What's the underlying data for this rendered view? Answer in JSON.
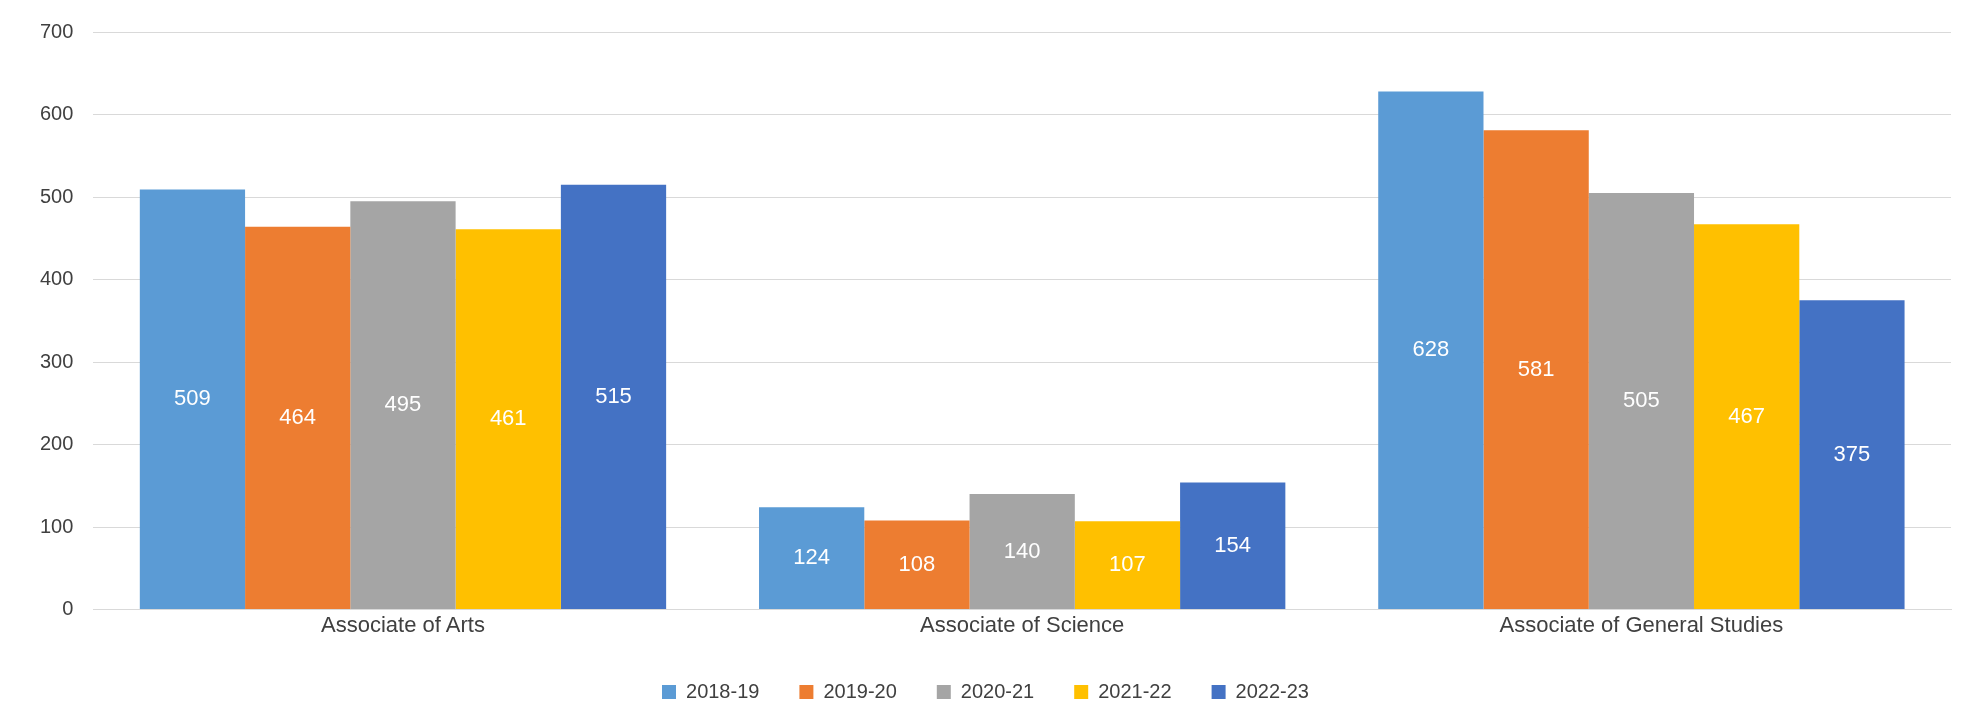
{
  "chart_data": {
    "type": "bar",
    "categories": [
      "Associate of Arts",
      "Associate of Science",
      "Associate of General Studies"
    ],
    "series": [
      {
        "name": "2018-19",
        "color": "#5b9bd5",
        "values": [
          509,
          124,
          628
        ]
      },
      {
        "name": "2019-20",
        "color": "#ed7d31",
        "values": [
          464,
          108,
          581
        ]
      },
      {
        "name": "2020-21",
        "color": "#a5a5a5",
        "values": [
          495,
          140,
          505
        ]
      },
      {
        "name": "2021-22",
        "color": "#ffc000",
        "values": [
          461,
          107,
          467
        ]
      },
      {
        "name": "2022-23",
        "color": "#4472c4",
        "values": [
          515,
          154,
          375
        ]
      }
    ],
    "ylim": [
      0,
      700
    ],
    "yticks": [
      0,
      100,
      200,
      300,
      400,
      500,
      600,
      700
    ],
    "grid": "y",
    "legend": "bottom",
    "data_labels": true
  }
}
